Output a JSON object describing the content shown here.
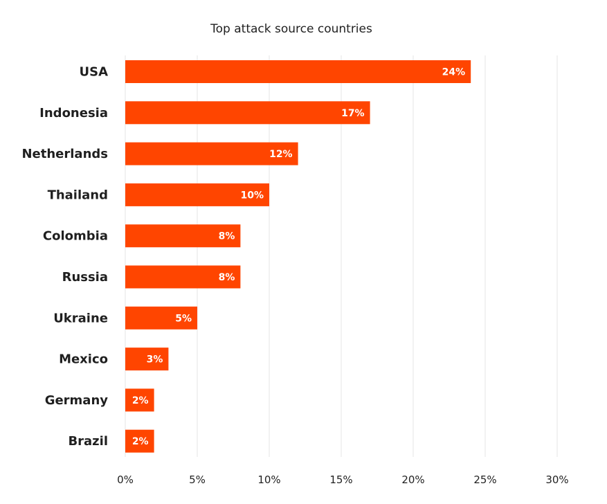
{
  "chart_data": {
    "type": "bar",
    "orientation": "horizontal",
    "title": "Top attack source countries",
    "categories": [
      "USA",
      "Indonesia",
      "Netherlands",
      "Thailand",
      "Colombia",
      "Russia",
      "Ukraine",
      "Mexico",
      "Germany",
      "Brazil"
    ],
    "values": [
      24,
      17,
      12,
      10,
      8,
      8,
      5,
      3,
      2,
      2
    ],
    "value_labels": [
      "24%",
      "17%",
      "12%",
      "10%",
      "8%",
      "8%",
      "5%",
      "3%",
      "2%",
      "2%"
    ],
    "x_ticks": [
      "0%",
      "5%",
      "10%",
      "15%",
      "20%",
      "25%",
      "30%"
    ],
    "xlim": [
      0,
      30
    ],
    "grid": true,
    "legend": false,
    "bar_color": "#ff4500"
  }
}
